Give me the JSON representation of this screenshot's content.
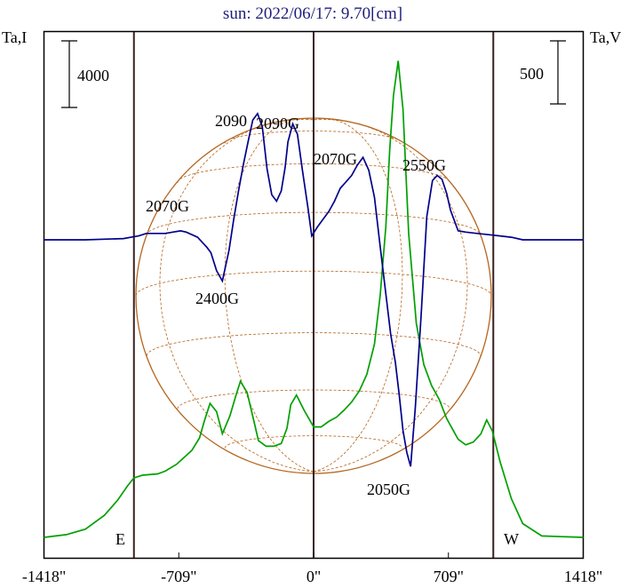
{
  "chart_data": {
    "type": "line",
    "title": "sun: 2022/06/17: 9.70[cm]",
    "left_axis_label": "Ta,I",
    "right_axis_label": "Ta,V",
    "left_scale_label": "4000",
    "right_scale_label": "500",
    "x_ticks": [
      {
        "value": -1418,
        "label": "-1418\""
      },
      {
        "value": -709,
        "label": "-709\""
      },
      {
        "value": 0,
        "label": "0\""
      },
      {
        "value": 709,
        "label": "709\""
      },
      {
        "value": 1418,
        "label": "1418\""
      }
    ],
    "xlim": [
      -1418,
      1418
    ],
    "limb_labels": {
      "east": "E",
      "west": "W"
    },
    "vertical_markers": [
      -945,
      0,
      945
    ],
    "grid": false,
    "colors": {
      "stokes_i": "#00a000",
      "stokes_v": "#00008b",
      "disk_grid": "#b5651d",
      "frame": "#000000",
      "markers": "#3a1f1f",
      "title": "#1e1e78"
    },
    "series": [
      {
        "id": "stokes_i",
        "x": [
          -1418,
          -1300,
          -1200,
          -1100,
          -1030,
          -980,
          -945,
          -900,
          -820,
          -780,
          -720,
          -680,
          -640,
          -600,
          -575,
          -545,
          -510,
          -480,
          -440,
          -410,
          -385,
          -350,
          -310,
          -290,
          -250,
          -210,
          -170,
          -140,
          -120,
          -90,
          -50,
          0,
          40,
          80,
          120,
          160,
          200,
          240,
          280,
          320,
          350,
          380,
          400,
          420,
          445,
          470,
          500,
          540,
          580,
          620,
          660,
          700,
          760,
          800,
          840,
          880,
          910,
          940,
          980,
          1040,
          1100,
          1200,
          1418
        ],
        "y": [
          0.0,
          0.02,
          0.06,
          0.16,
          0.27,
          0.37,
          0.43,
          0.45,
          0.46,
          0.48,
          0.53,
          0.58,
          0.63,
          0.72,
          0.84,
          0.97,
          0.91,
          0.75,
          0.88,
          1.02,
          1.13,
          1.05,
          0.82,
          0.7,
          0.66,
          0.66,
          0.68,
          0.79,
          0.96,
          1.03,
          0.92,
          0.8,
          0.8,
          0.84,
          0.87,
          0.92,
          0.98,
          1.06,
          1.18,
          1.4,
          1.75,
          2.25,
          2.8,
          3.2,
          3.45,
          3.1,
          2.2,
          1.55,
          1.25,
          1.1,
          1.0,
          0.86,
          0.71,
          0.67,
          0.69,
          0.75,
          0.85,
          0.77,
          0.55,
          0.28,
          0.1,
          0.01,
          0.0
        ]
      },
      {
        "id": "stokes_v",
        "x": [
          -1418,
          -1200,
          -1000,
          -960,
          -920,
          -880,
          -830,
          -780,
          -740,
          -700,
          -670,
          -640,
          -610,
          -585,
          -560,
          -540,
          -510,
          -480,
          -445,
          -420,
          -395,
          -370,
          -345,
          -320,
          -295,
          -270,
          -245,
          -220,
          -195,
          -170,
          -150,
          -135,
          -110,
          -85,
          -60,
          -30,
          -10,
          20,
          50,
          80,
          110,
          140,
          170,
          200,
          230,
          260,
          290,
          320,
          350,
          380,
          405,
          430,
          450,
          470,
          490,
          510,
          535,
          565,
          595,
          625,
          650,
          675,
          700,
          720,
          760,
          800,
          860,
          920,
          980,
          1040,
          1100,
          1418
        ],
        "y": [
          0.0,
          0.0,
          0.01,
          0.02,
          0.03,
          0.05,
          0.05,
          0.05,
          0.06,
          0.07,
          0.06,
          0.04,
          0.02,
          -0.02,
          -0.06,
          -0.1,
          -0.24,
          -0.32,
          -0.08,
          0.16,
          0.38,
          0.58,
          0.76,
          0.93,
          0.98,
          0.88,
          0.55,
          0.35,
          0.3,
          0.38,
          0.56,
          0.76,
          0.9,
          0.82,
          0.55,
          0.25,
          0.03,
          0.1,
          0.16,
          0.22,
          0.3,
          0.4,
          0.45,
          0.5,
          0.58,
          0.64,
          0.54,
          0.33,
          -0.05,
          -0.42,
          -0.73,
          -0.95,
          -1.2,
          -1.48,
          -1.65,
          -1.76,
          -1.3,
          -0.6,
          0.18,
          0.46,
          0.5,
          0.47,
          0.36,
          0.23,
          0.07,
          0.06,
          0.05,
          0.04,
          0.03,
          0.02,
          0.0,
          0.0
        ]
      }
    ],
    "annotations": [
      "2090",
      "2090G",
      "2070G",
      "2550G",
      "2070G",
      "2400G",
      "2050G"
    ]
  }
}
